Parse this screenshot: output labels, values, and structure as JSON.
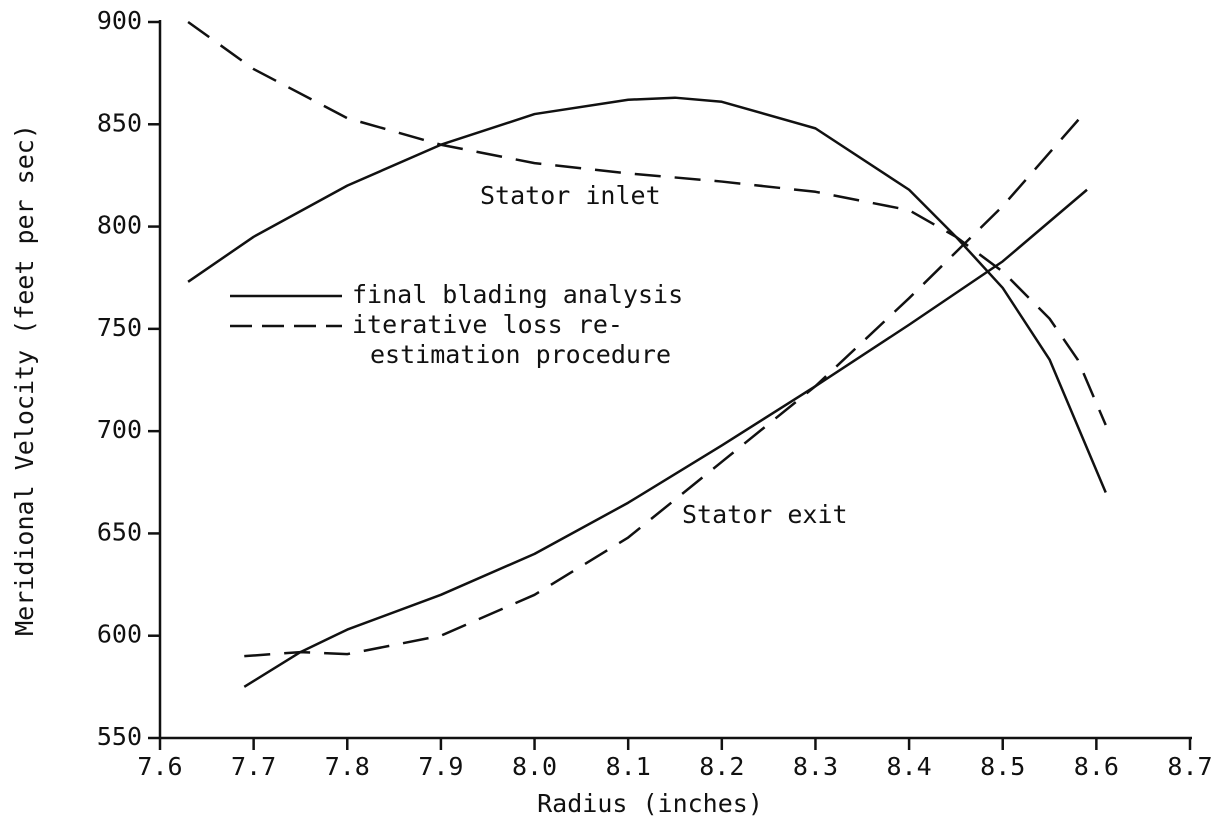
{
  "chart_data": {
    "type": "line",
    "x_label": "Radius (inches)",
    "y_label": "Meridional Velocity (feet per sec)",
    "xlim": [
      7.6,
      8.7
    ],
    "ylim": [
      550,
      900
    ],
    "xticks": [
      7.6,
      7.7,
      7.8,
      7.9,
      {
        "value": 8,
        "label": "8.0"
      },
      8.1,
      8.2,
      8.3,
      8.4,
      8.5,
      8.6,
      8.7
    ],
    "yticks": [
      550,
      600,
      650,
      700,
      750,
      800,
      850,
      900
    ],
    "annotations": [
      "Stator inlet",
      "Stator exit"
    ],
    "legend": [
      {
        "label": [
          "final blading analysis"
        ],
        "dashed": false
      },
      {
        "label": [
          "iterative loss re-",
          "estimation procedure"
        ],
        "dashed": true
      }
    ],
    "series": [
      {
        "color": "#111111",
        "dashed": false,
        "x": [
          7.63,
          7.7,
          7.8,
          7.9,
          8.0,
          8.1,
          8.15,
          8.2,
          8.3,
          8.4,
          8.45,
          8.5,
          8.55,
          8.61
        ],
        "values": [
          773,
          795,
          820,
          840,
          855,
          862,
          863,
          861,
          848,
          818,
          795,
          770,
          735,
          670
        ]
      },
      {
        "color": "#111111",
        "dashed": true,
        "x": [
          7.63,
          7.7,
          7.8,
          7.9,
          8.0,
          8.1,
          8.2,
          8.3,
          8.4,
          8.45,
          8.5,
          8.55,
          8.58,
          8.61
        ],
        "values": [
          900,
          877,
          853,
          840,
          831,
          826,
          822,
          817,
          808,
          795,
          778,
          755,
          735,
          703
        ]
      },
      {
        "color": "#111111",
        "dashed": false,
        "x": [
          7.69,
          7.75,
          7.8,
          7.9,
          8.0,
          8.1,
          8.2,
          8.3,
          8.4,
          8.5,
          8.59
        ],
        "values": [
          575,
          592,
          603,
          620,
          640,
          665,
          693,
          722,
          752,
          783,
          818
        ]
      },
      {
        "color": "#111111",
        "dashed": true,
        "x": [
          7.69,
          7.75,
          7.8,
          7.9,
          8.0,
          8.1,
          8.2,
          8.3,
          8.4,
          8.5,
          8.59
        ],
        "values": [
          590,
          592,
          591,
          600,
          620,
          648,
          685,
          722,
          765,
          810,
          857
        ]
      }
    ]
  }
}
